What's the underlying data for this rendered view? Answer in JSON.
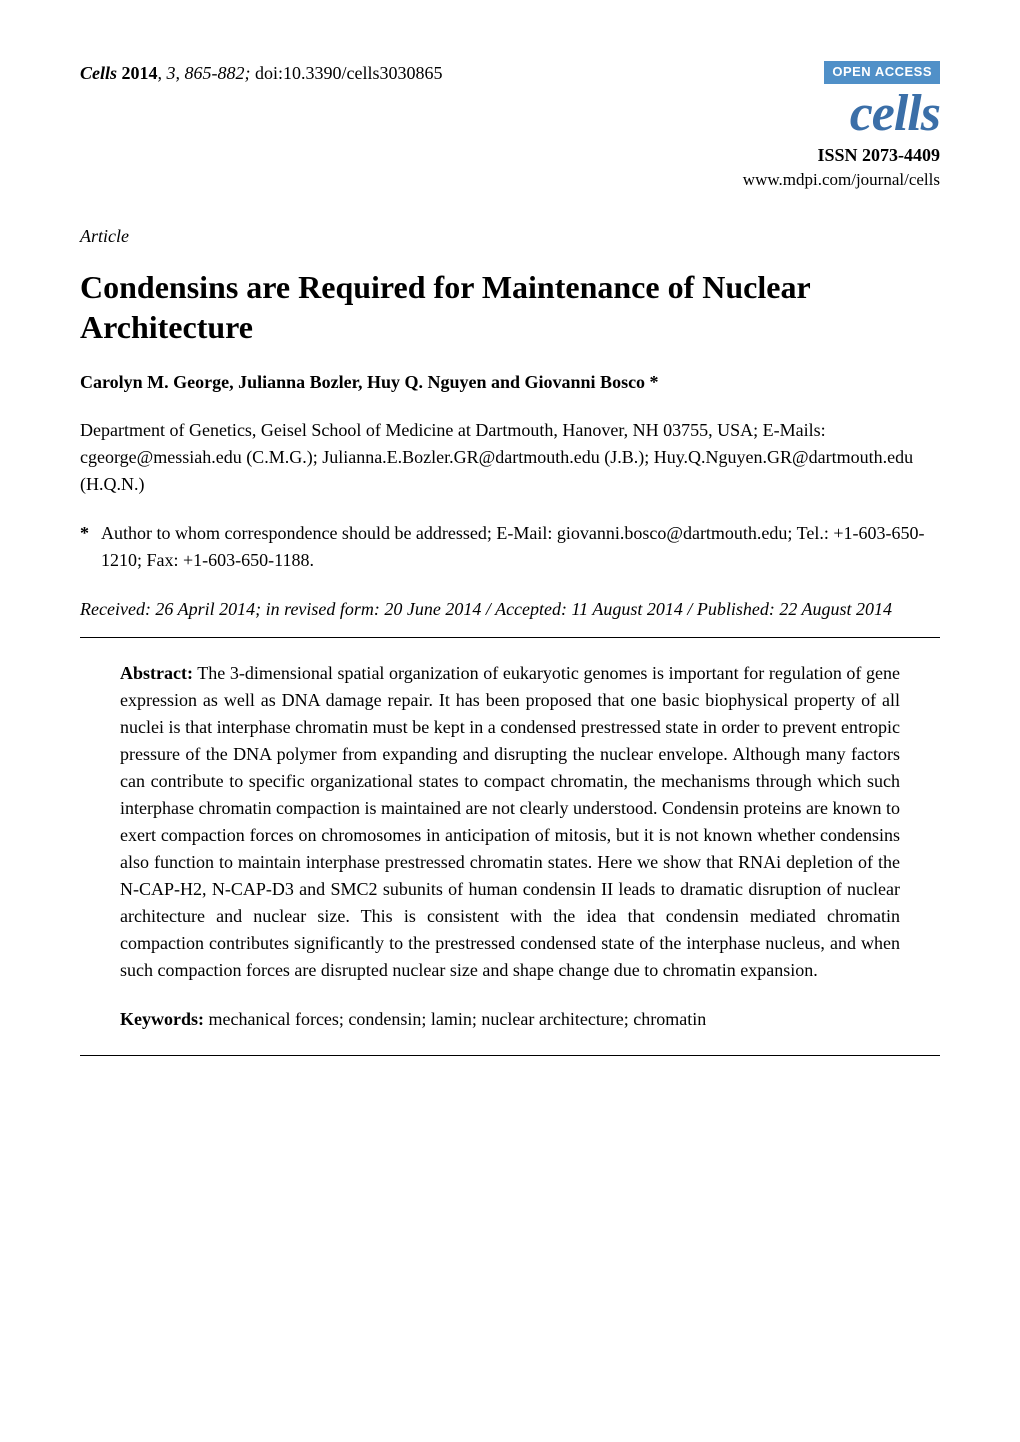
{
  "header": {
    "citation": {
      "journal": "Cells",
      "year": "2014",
      "volume_pages": ", 3, 865-882; ",
      "doi": "doi:10.3390/cells3030865"
    },
    "open_access": "OPEN ACCESS",
    "journal_logo": "cells",
    "issn": "ISSN 2073-4409",
    "journal_url": "www.mdpi.com/journal/cells",
    "badge_bg_color": "#5090c8",
    "logo_color": "#3b6fa8"
  },
  "article_type": "Article",
  "title": "Condensins are Required for Maintenance of Nuclear Architecture",
  "authors": "Carolyn M. George, Julianna Bozler, Huy Q. Nguyen and Giovanni Bosco *",
  "affiliation": "Department of Genetics, Geisel School of Medicine at Dartmouth, Hanover, NH 03755, USA; E-Mails: cgeorge@messiah.edu (C.M.G.); Julianna.E.Bozler.GR@dartmouth.edu (J.B.); Huy.Q.Nguyen.GR@dartmouth.edu (H.Q.N.)",
  "correspondence": {
    "star": "*",
    "text": "Author to whom correspondence should be addressed; E-Mail: giovanni.bosco@dartmouth.edu; Tel.: +1-603-650-1210; Fax: +1-603-650-1188."
  },
  "dates": "Received: 26 April 2014; in revised form: 20 June 2014 / Accepted: 11 August 2014 / Published: 22 August 2014",
  "abstract": {
    "label": "Abstract:",
    "text": " The 3-dimensional spatial organization of eukaryotic genomes is important for regulation of gene expression as well as DNA damage repair. It has been proposed that one basic biophysical property of all nuclei is that interphase chromatin must be kept in a condensed prestressed state in order to prevent entropic pressure of the DNA polymer from expanding and disrupting the nuclear envelope. Although many factors can contribute to specific organizational states to compact chromatin, the mechanisms through which such interphase chromatin compaction is maintained are not clearly understood. Condensin proteins are known to exert compaction forces on chromosomes in anticipation of mitosis, but it is not known whether condensins also function to maintain interphase prestressed chromatin states. Here we show that RNAi depletion of the N-CAP-H2, N-CAP-D3 and SMC2 subunits of human condensin II leads to dramatic disruption of nuclear architecture and nuclear size. This is consistent with the idea that condensin mediated chromatin compaction contributes significantly to the prestressed condensed state of the interphase nucleus, and when such compaction forces are disrupted nuclear size and shape change due to chromatin expansion."
  },
  "keywords": {
    "label": "Keywords:",
    "text": " mechanical forces; condensin; lamin; nuclear architecture; chromatin"
  },
  "typography": {
    "body_font": "Times New Roman",
    "body_fontsize_pt": 12,
    "title_fontsize_pt": 20,
    "title_weight": "bold",
    "background_color": "#ffffff",
    "text_color": "#000000"
  }
}
